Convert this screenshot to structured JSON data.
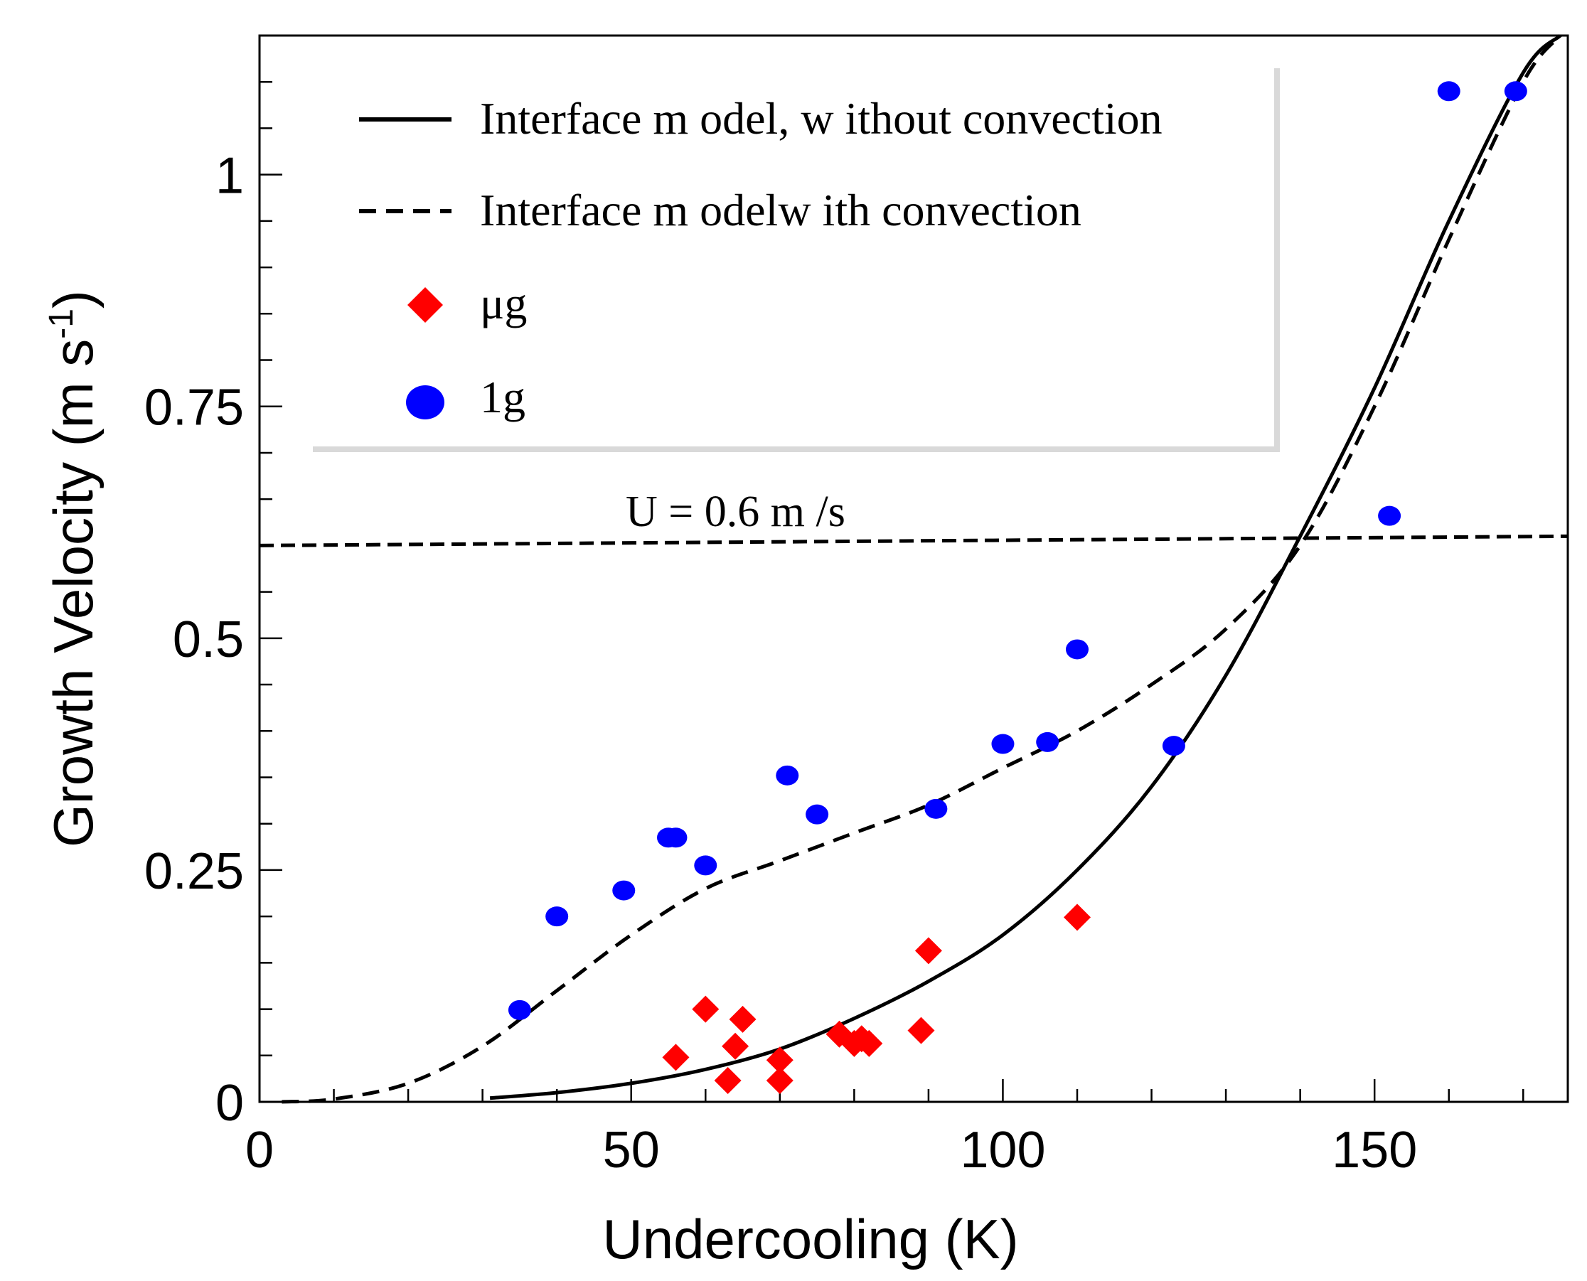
{
  "chart_data": {
    "type": "scatter",
    "title": "",
    "xlabel": "Undercooling  (K)",
    "ylabel_main": "Growth Velocity  (m s",
    "ylabel_sup": "-1",
    "ylabel_close": ")",
    "xlim": [
      0,
      176
    ],
    "ylim": [
      0,
      1.15
    ],
    "x_ticks": [
      0,
      50,
      100,
      150
    ],
    "x_tick_labels": [
      "0",
      "50",
      "100",
      "150"
    ],
    "y_ticks": [
      0,
      0.25,
      0.5,
      0.75,
      1
    ],
    "y_tick_labels": [
      "0",
      "0.25",
      "0.5",
      "0.75",
      "1"
    ],
    "grid": false,
    "legend_position": "top-left",
    "annotation": "U = 0.6 m /s",
    "reference_line": {
      "label": "U = 0.6 m /s",
      "y_start": 0.6,
      "y_end": 0.61
    },
    "series": [
      {
        "name": "Interface m odel, w ithout convection",
        "kind": "line",
        "style": "solid",
        "x": [
          31,
          40,
          50,
          60,
          70,
          80,
          90,
          100,
          110,
          120,
          130,
          140,
          150,
          160,
          170,
          175
        ],
        "y": [
          0.004,
          0.01,
          0.02,
          0.035,
          0.057,
          0.09,
          0.13,
          0.18,
          0.25,
          0.34,
          0.46,
          0.61,
          0.77,
          0.95,
          1.11,
          1.15
        ]
      },
      {
        "name": "Interface m odelw ith convection",
        "kind": "line",
        "style": "dashed",
        "x": [
          3,
          10,
          20,
          30,
          40,
          50,
          60,
          70,
          80,
          90,
          100,
          110,
          120,
          130,
          140,
          150,
          160,
          170,
          175
        ],
        "y": [
          0.0,
          0.003,
          0.02,
          0.06,
          0.12,
          0.18,
          0.23,
          0.26,
          0.29,
          0.32,
          0.36,
          0.4,
          0.45,
          0.51,
          0.6,
          0.75,
          0.93,
          1.1,
          1.15
        ]
      },
      {
        "name": "μg",
        "kind": "scatter",
        "marker": "diamond",
        "color": "#ff0000",
        "x": [
          56,
          60,
          63,
          64,
          65,
          70,
          70,
          78,
          80,
          81,
          82,
          89,
          90,
          110
        ],
        "y": [
          0.048,
          0.1,
          0.023,
          0.06,
          0.089,
          0.045,
          0.023,
          0.073,
          0.063,
          0.068,
          0.063,
          0.077,
          0.163,
          0.199
        ]
      },
      {
        "name": "1g",
        "kind": "scatter",
        "marker": "circle",
        "color": "#0000ff",
        "x": [
          35,
          40,
          49,
          55,
          56,
          60,
          71,
          75,
          91,
          100,
          106,
          110,
          123,
          152,
          160,
          169
        ],
        "y": [
          0.099,
          0.2,
          0.228,
          0.285,
          0.285,
          0.255,
          0.352,
          0.31,
          0.316,
          0.386,
          0.388,
          0.488,
          0.384,
          0.632,
          1.09,
          1.09
        ]
      }
    ]
  }
}
